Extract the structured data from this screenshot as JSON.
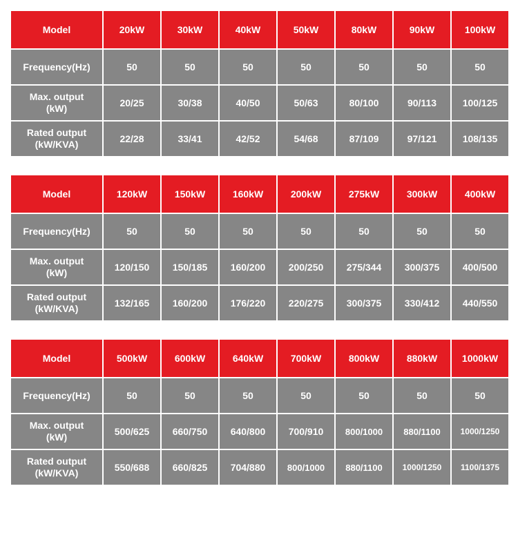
{
  "colors": {
    "header_bg": "#e41c23",
    "cell_bg": "#868686",
    "text": "#ffffff",
    "page_bg": "#ffffff"
  },
  "row_labels": {
    "model": "Model",
    "frequency": "Frequency(Hz)",
    "max_output_l1": "Max. output",
    "max_output_l2": "(kW)",
    "rated_output_l1": "Rated output",
    "rated_output_l2": "(kW/KVA)"
  },
  "tables": [
    {
      "models": [
        "20kW",
        "30kW",
        "40kW",
        "50kW",
        "80kW",
        "90kW",
        "100kW"
      ],
      "frequency": [
        "50",
        "50",
        "50",
        "50",
        "50",
        "50",
        "50"
      ],
      "max_output": [
        "20/25",
        "30/38",
        "40/50",
        "50/63",
        "80/100",
        "90/113",
        "100/125"
      ],
      "rated_output": [
        "22/28",
        "33/41",
        "42/52",
        "54/68",
        "87/109",
        "97/121",
        "108/135"
      ]
    },
    {
      "models": [
        "120kW",
        "150kW",
        "160kW",
        "200kW",
        "275kW",
        "300kW",
        "400kW"
      ],
      "frequency": [
        "50",
        "50",
        "50",
        "50",
        "50",
        "50",
        "50"
      ],
      "max_output": [
        "120/150",
        "150/185",
        "160/200",
        "200/250",
        "275/344",
        "300/375",
        "400/500"
      ],
      "rated_output": [
        "132/165",
        "160/200",
        "176/220",
        "220/275",
        "300/375",
        "330/412",
        "440/550"
      ]
    },
    {
      "models": [
        "500kW",
        "600kW",
        "640kW",
        "700kW",
        "800kW",
        "880kW",
        "1000kW"
      ],
      "frequency": [
        "50",
        "50",
        "50",
        "50",
        "50",
        "50",
        "50"
      ],
      "max_output": [
        "500/625",
        "660/750",
        "640/800",
        "700/910",
        "800/1000",
        "880/1100",
        "1000/1250"
      ],
      "rated_output": [
        "550/688",
        "660/825",
        "704/880",
        "800/1000",
        "880/1100",
        "1000/1250",
        "1100/1375"
      ]
    }
  ]
}
